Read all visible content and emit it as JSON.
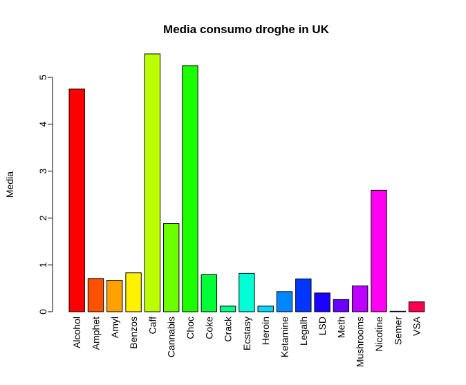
{
  "chart_data": {
    "type": "bar",
    "title": "Media consumo droghe in UK",
    "xlabel": "",
    "ylabel": "Media",
    "ylim": [
      0,
      5.5
    ],
    "yticks": [
      0,
      1,
      2,
      3,
      4,
      5
    ],
    "categories": [
      "Alcohol",
      "Amphet",
      "Amyl",
      "Benzos",
      "Caff",
      "Cannabis",
      "Choc",
      "Coke",
      "Crack",
      "Ecstasy",
      "Heroin",
      "Ketamine",
      "Legalh",
      "LSD",
      "Meth",
      "Mushrooms",
      "Nicotine",
      "Semer",
      "VSA"
    ],
    "values": [
      4.75,
      0.71,
      0.67,
      0.83,
      5.5,
      1.88,
      5.25,
      0.79,
      0.12,
      0.82,
      0.12,
      0.43,
      0.7,
      0.4,
      0.26,
      0.55,
      2.59,
      0.01,
      0.21
    ],
    "colors": [
      "#FF0000",
      "#FF5100",
      "#FFA100",
      "#FFF200",
      "#BCFF00",
      "#6BFF00",
      "#1BFF00",
      "#00FF36",
      "#00FF86",
      "#00FFD7",
      "#00D7FF",
      "#0086FF",
      "#0036FF",
      "#1B00FF",
      "#6B00FF",
      "#BC00FF",
      "#FF00F2",
      "#FF00A1",
      "#FF0051"
    ],
    "grid": false,
    "legend": "none"
  }
}
